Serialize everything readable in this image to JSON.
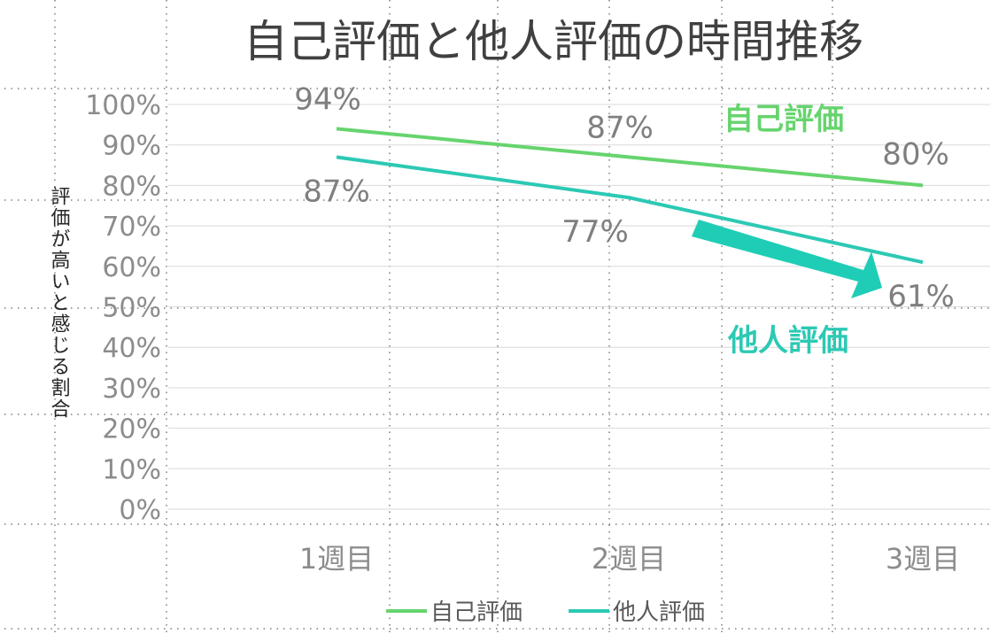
{
  "chart_data": {
    "type": "line",
    "title": "自己評価と他人評価の時間推移",
    "ylabel": "評価が高いと感じる割合",
    "xlabel": "",
    "categories": [
      "1週目",
      "2週目",
      "3週目"
    ],
    "y_ticks": [
      "0%",
      "10%",
      "20%",
      "30%",
      "40%",
      "50%",
      "60%",
      "70%",
      "80%",
      "90%",
      "100%"
    ],
    "ylim": [
      0,
      100
    ],
    "grid": true,
    "legend_position": "bottom",
    "series": [
      {
        "name": "自己評価",
        "values": [
          94,
          87,
          80
        ],
        "labels": [
          "94%",
          "87%",
          "80%"
        ],
        "color": "#66d46e"
      },
      {
        "name": "他人評価",
        "values": [
          87,
          77,
          61
        ],
        "labels": [
          "87%",
          "77%",
          "61%"
        ],
        "color": "#2cc9b4"
      }
    ],
    "annotations": {
      "self_label": "自己評価",
      "other_label": "他人評価",
      "arrow_color": "#1fcdb6"
    }
  }
}
